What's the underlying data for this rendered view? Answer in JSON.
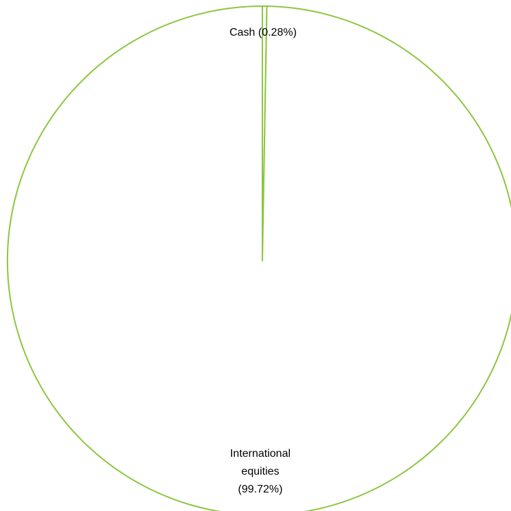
{
  "chart_data": {
    "type": "pie",
    "title": "",
    "slices": [
      {
        "label_lines": [
          "Cash (0.28%)"
        ],
        "value": 0.28
      },
      {
        "label_lines": [
          "International",
          "equities",
          "(99.72%)"
        ],
        "value": 99.72
      }
    ],
    "colors": {
      "edge": "#8cc63f",
      "fill": "#ffffff",
      "label": "#000000"
    },
    "legend": "none",
    "start_angle": "12 o'clock, clockwise"
  }
}
